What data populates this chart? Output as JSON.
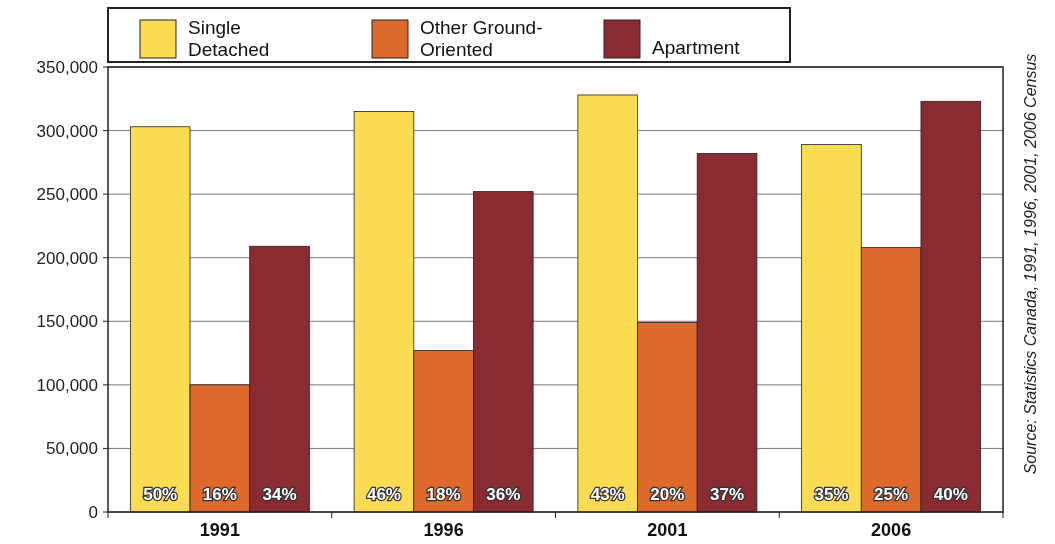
{
  "chart_data": {
    "type": "bar",
    "categories": [
      "1991",
      "1996",
      "2001",
      "2006"
    ],
    "series": [
      {
        "name": "Single Detached",
        "color": "#fbdc52",
        "values": [
          303000,
          315000,
          328000,
          289000
        ]
      },
      {
        "name": "Other Ground-Oriented",
        "color": "#dd6a2c",
        "values": [
          100000,
          127000,
          149000,
          208000
        ]
      },
      {
        "name": "Apartment",
        "color": "#8a2a31",
        "values": [
          209000,
          252000,
          282000,
          323000
        ]
      }
    ],
    "ylim": [
      0,
      350000
    ],
    "yticks": [
      {
        "value": 0,
        "label": "0"
      },
      {
        "value": 50000,
        "label": "50,000"
      },
      {
        "value": 100000,
        "label": "100,000"
      },
      {
        "value": 150000,
        "label": "150,000"
      },
      {
        "value": 200000,
        "label": "200,000"
      },
      {
        "value": 250000,
        "label": "250,000"
      },
      {
        "value": 300000,
        "label": "300,000"
      },
      {
        "value": 350000,
        "label": "350,000"
      }
    ],
    "grid": "y",
    "legend": "top",
    "annotations": [
      "Source: Statistics Canada, 1991, 1996, 2001, 2006 Census",
      {
        "text": "50%",
        "x": "1991",
        "y": 0
      },
      {
        "text": "16%",
        "x": "1991",
        "y": 0
      },
      {
        "text": "34%",
        "x": "1991",
        "y": 0
      },
      {
        "text": "46%",
        "x": "1996",
        "y": 0
      },
      {
        "text": "18%",
        "x": "1996",
        "y": 0
      },
      {
        "text": "36%",
        "x": "1996",
        "y": 0
      },
      {
        "text": "43%",
        "x": "2001",
        "y": 0
      },
      {
        "text": "20%",
        "x": "2001",
        "y": 0
      },
      {
        "text": "37%",
        "x": "2001",
        "y": 0
      },
      {
        "text": "35%",
        "x": "2006",
        "y": 0
      },
      {
        "text": "25%",
        "x": "2006",
        "y": 0
      },
      {
        "text": "40%",
        "x": "2006",
        "y": 0
      }
    ]
  }
}
